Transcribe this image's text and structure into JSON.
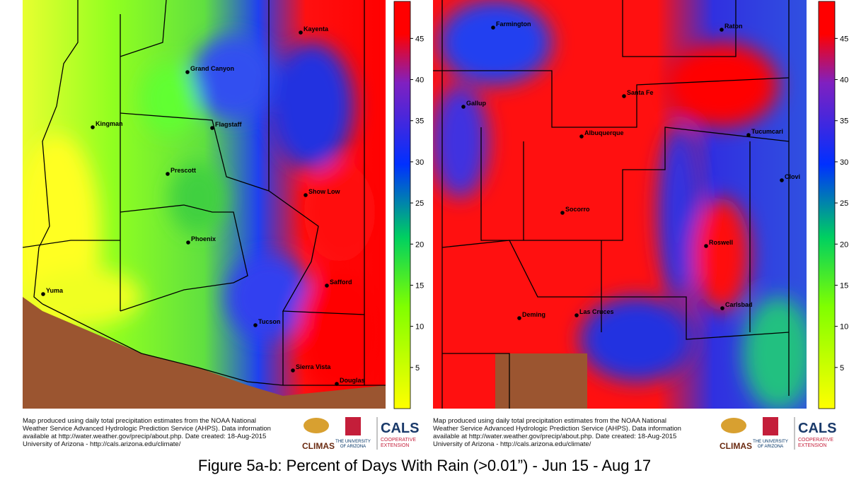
{
  "maps": [
    {
      "cities": [
        "Kayenta",
        "Grand Canyon",
        "Kingman",
        "Flagstaff",
        "Prescott",
        "Show Low",
        "Phoenix",
        "Safford",
        "Yuma",
        "Tucson",
        "Sierra Vista",
        "Douglas"
      ],
      "colorbar": {
        "lim": [
          0,
          49.5
        ],
        "ticks": [
          5,
          10,
          15,
          20,
          25,
          30,
          35,
          40,
          45
        ]
      },
      "note": [
        "Map produced using daily total precipitation estimates from the NOAA National",
        "Weather Service Advanced Hydrologic Prediction Service (AHPS). Data information",
        "available at http://water.weather.gov/precip/about.php. Date created: 18-Aug-2015",
        "University of Arizona - http://cals.arizona.edu/climate/"
      ],
      "logos": [
        "CLIMAS",
        "THE UNIVERSITY",
        "OF ARIZONA",
        "CALS",
        "COOPERATIVE",
        "EXTENSION"
      ]
    },
    {
      "cities": [
        "Farmington",
        "Raton",
        "Gallup",
        "Santa Fe",
        "Albuquerque",
        "Tucumcari",
        "Clovi",
        "Socorro",
        "Roswell",
        "Las Cruces",
        "Deming",
        "Carlsbad"
      ],
      "colorbar": {
        "lim": [
          0,
          49.5
        ],
        "ticks": [
          5,
          10,
          15,
          20,
          25,
          30,
          35,
          40,
          45
        ]
      },
      "note": [
        "Map produced using daily total precipitation estimates from the NOAA National",
        "Weather Service Advanced Hydrologic Prediction Service (AHPS). Data information",
        "available at http://water.weather.gov/precip/about.php. Date created: 18-Aug-2015",
        "University of Arizona - http://cals.arizona.edu/climate/"
      ],
      "logos": [
        "CLIMAS",
        "THE UNIVERSITY",
        "OF ARIZONA",
        "CALS",
        "COOPERATIVE",
        "EXTENSION"
      ]
    }
  ],
  "caption": "Figure 5a-b: Percent of Days With Rain (>0.01”) - Jun 15 - Aug 17"
}
